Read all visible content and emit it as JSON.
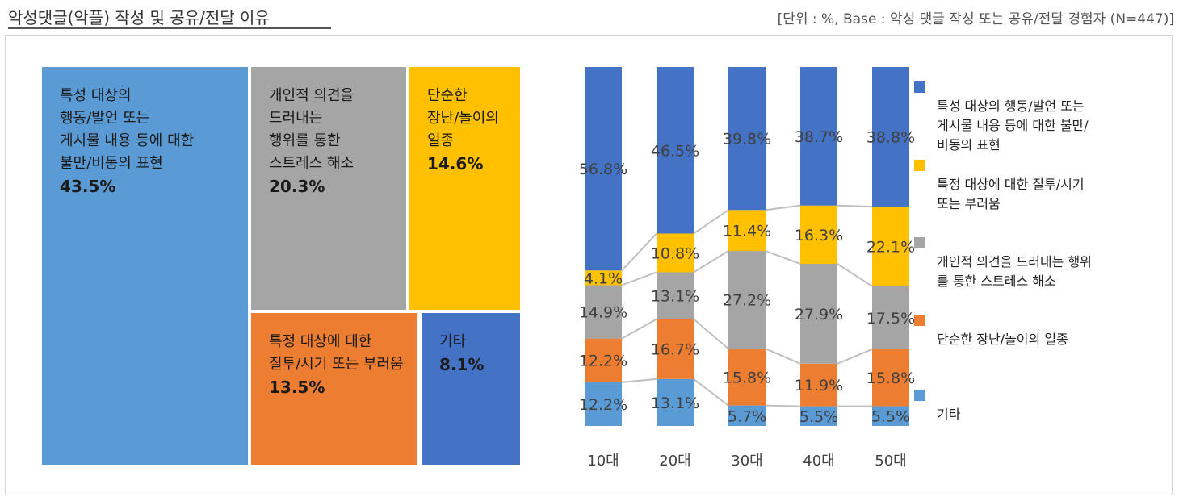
{
  "title": "악성댓글(악플) 작성 및 공유/전달 이유",
  "base_note": "[단위 : %, Base : 악성 댓글 작성 또는 공유/전달 경험자 (N=447)]",
  "treemap": [
    {
      "label": "특성 대상의\n행동/발언 또는\n게시물 내용 등에 대한\n불만/비동의 표현",
      "value": "43.5%",
      "color": "#5B9BD5"
    },
    {
      "label": "개인적 의견을\n드러내는\n행위를 통한\n스트레스 해소",
      "value": "20.3%",
      "color": "#A5A5A5"
    },
    {
      "label": "단순한\n장난/놀이의\n일종",
      "value": "14.6%",
      "color": "#FFC000"
    },
    {
      "label": "특정 대상에 대한\n질투/시기 또는 부러움",
      "value": "13.5%",
      "color": "#ED7D31"
    },
    {
      "label": "기타",
      "value": "8.1%",
      "color": "#4472C4"
    }
  ],
  "chart_data": {
    "type": "bar",
    "stacked": true,
    "categories": [
      "10대",
      "20대",
      "30대",
      "40대",
      "50대"
    ],
    "series": [
      {
        "name": "기타",
        "color": "#5B9BD5",
        "values": [
          12.2,
          13.1,
          5.7,
          5.5,
          5.5
        ],
        "labels": [
          "12.2%",
          "13.1%",
          "5.7%",
          "5.5%",
          "5.5%"
        ]
      },
      {
        "name": "단순한 장난/놀이의 일종",
        "color": "#ED7D31",
        "values": [
          12.2,
          16.7,
          15.8,
          11.9,
          15.8
        ],
        "labels": [
          "12.2%",
          "16.7%",
          "15.8%",
          "11.9%",
          "15.8%"
        ]
      },
      {
        "name": "개인적 의견을 드러내는 행위를 통한 스트레스 해소",
        "color": "#A5A5A5",
        "values": [
          14.9,
          13.1,
          27.2,
          27.9,
          17.5
        ],
        "labels": [
          "14.9%",
          "13.1%",
          "27.2%",
          "27.9%",
          "17.5%"
        ]
      },
      {
        "name": "특정 대상에 대한 질투/시기 또는 부러움",
        "color": "#FFC000",
        "values": [
          4.1,
          10.8,
          11.4,
          16.3,
          22.1
        ],
        "labels": [
          "4.1%",
          "10.8%",
          "11.4%",
          "16.3%",
          "22.1%"
        ]
      },
      {
        "name": "특성 대상의 행동/발언 또는 게시물 내용 등에 대한 불만/비동의 표현",
        "color": "#4472C4",
        "values": [
          56.8,
          46.5,
          39.8,
          38.7,
          38.8
        ],
        "labels": [
          "56.8%",
          "46.5%",
          "39.8%",
          "38.7%",
          "38.8%"
        ]
      }
    ],
    "ylim": [
      0,
      100
    ]
  },
  "legend": [
    {
      "text": "특성 대상의 행동/발언 또는\n게시물 내용 등에 대한 불만/\n비동의 표현",
      "color": "#4472C4"
    },
    {
      "text": "특정 대상에 대한 질투/시기\n또는 부러움",
      "color": "#FFC000"
    },
    {
      "text": "개인적 의견을 드러내는 행위\n를 통한 스트레스 해소",
      "color": "#A5A5A5"
    },
    {
      "text": "단순한 장난/놀이의 일종",
      "color": "#ED7D31"
    },
    {
      "text": "기타",
      "color": "#5B9BD5"
    }
  ]
}
